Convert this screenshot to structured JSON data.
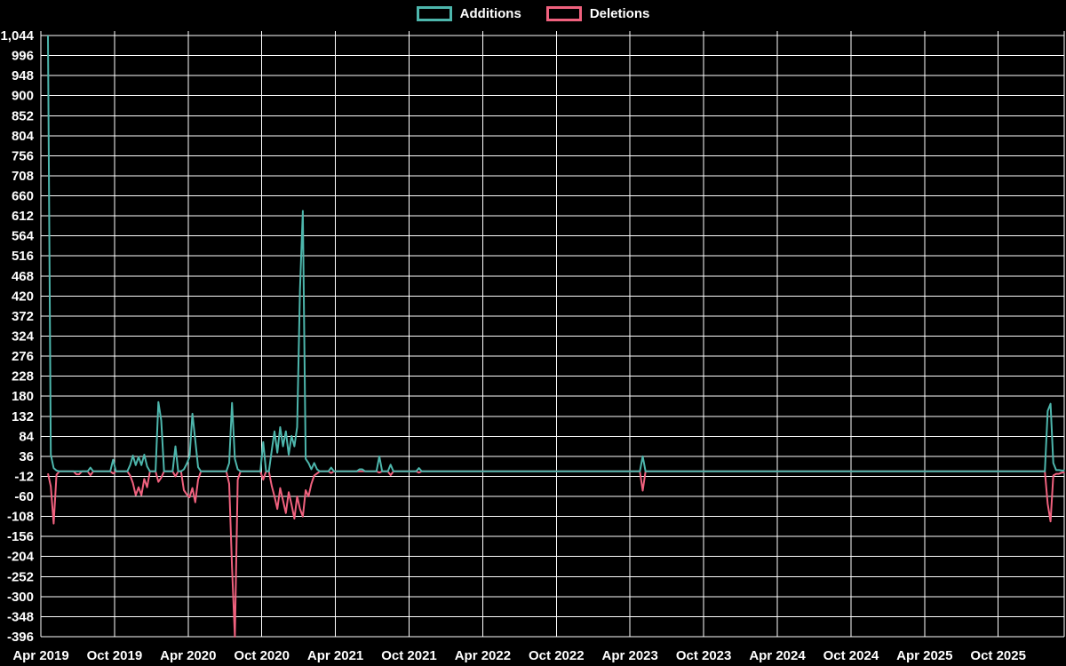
{
  "legend": {
    "items": [
      {
        "label": "Additions",
        "color": "#4DB6AC"
      },
      {
        "label": "Deletions",
        "color": "#F0617E"
      }
    ]
  },
  "chart_data": {
    "type": "line",
    "title": "",
    "grid": true,
    "legend_position": "top-center",
    "background_color": "#000000",
    "gridline_color": "#FFFFFF",
    "x": {
      "tick_labels": [
        "Apr 2019",
        "Oct 2019",
        "Apr 2020",
        "Oct 2020",
        "Apr 2021",
        "Oct 2021",
        "Apr 2022",
        "Oct 2022",
        "Apr 2023",
        "Oct 2023",
        "Apr 2024",
        "Oct 2024",
        "Apr 2025",
        "Oct 2025"
      ],
      "weeks_between_ticks": 26,
      "total_weeks": 360
    },
    "y": {
      "min": -396,
      "max": 1044,
      "step": 48,
      "tick_labels": [
        "1,044",
        "996",
        "948",
        "900",
        "852",
        "804",
        "756",
        "708",
        "660",
        "612",
        "564",
        "516",
        "468",
        "420",
        "372",
        "324",
        "276",
        "228",
        "180",
        "132",
        "84",
        "36",
        "-12",
        "-60",
        "-108",
        "-156",
        "-204",
        "-252",
        "-300",
        "-348",
        "-396"
      ]
    },
    "series": [
      {
        "name": "Additions",
        "color": "#4DB6AC",
        "baseline": 0,
        "points_sparse": [
          [
            0,
            1044
          ],
          [
            1,
            40
          ],
          [
            2,
            8
          ],
          [
            3,
            2
          ],
          [
            15,
            9
          ],
          [
            23,
            28
          ],
          [
            29,
            15
          ],
          [
            30,
            38
          ],
          [
            31,
            15
          ],
          [
            32,
            35
          ],
          [
            33,
            15
          ],
          [
            34,
            40
          ],
          [
            35,
            12
          ],
          [
            39,
            166
          ],
          [
            40,
            122
          ],
          [
            45,
            60
          ],
          [
            48,
            5
          ],
          [
            49,
            18
          ],
          [
            50,
            35
          ],
          [
            51,
            138
          ],
          [
            52,
            75
          ],
          [
            53,
            10
          ],
          [
            64,
            20
          ],
          [
            65,
            164
          ],
          [
            66,
            30
          ],
          [
            67,
            5
          ],
          [
            76,
            70
          ],
          [
            79,
            50
          ],
          [
            80,
            96
          ],
          [
            81,
            45
          ],
          [
            82,
            106
          ],
          [
            83,
            60
          ],
          [
            84,
            96
          ],
          [
            85,
            40
          ],
          [
            86,
            85
          ],
          [
            87,
            60
          ],
          [
            88,
            106
          ],
          [
            89,
            436
          ],
          [
            90,
            624
          ],
          [
            91,
            30
          ],
          [
            92,
            20
          ],
          [
            93,
            5
          ],
          [
            94,
            20
          ],
          [
            95,
            5
          ],
          [
            100,
            9
          ],
          [
            110,
            5
          ],
          [
            111,
            5
          ],
          [
            117,
            36
          ],
          [
            121,
            16
          ],
          [
            131,
            8
          ],
          [
            210,
            36
          ],
          [
            353,
            145
          ],
          [
            354,
            162
          ],
          [
            355,
            20
          ],
          [
            356,
            3
          ],
          [
            357,
            3
          ],
          [
            358,
            2
          ],
          [
            359,
            2
          ]
        ]
      },
      {
        "name": "Deletions",
        "color": "#F0617E",
        "baseline": 0,
        "points_sparse": [
          [
            0,
            -5
          ],
          [
            1,
            -36
          ],
          [
            2,
            -125
          ],
          [
            3,
            -8
          ],
          [
            10,
            -7
          ],
          [
            11,
            -7
          ],
          [
            15,
            -9
          ],
          [
            23,
            -5
          ],
          [
            29,
            -10
          ],
          [
            30,
            -28
          ],
          [
            31,
            -57
          ],
          [
            32,
            -38
          ],
          [
            33,
            -57
          ],
          [
            34,
            -18
          ],
          [
            35,
            -38
          ],
          [
            39,
            -25
          ],
          [
            40,
            -15
          ],
          [
            45,
            -12
          ],
          [
            48,
            -45
          ],
          [
            49,
            -55
          ],
          [
            50,
            -62
          ],
          [
            51,
            -40
          ],
          [
            52,
            -74
          ],
          [
            53,
            -20
          ],
          [
            64,
            -30
          ],
          [
            65,
            -230
          ],
          [
            66,
            -396
          ],
          [
            67,
            -20
          ],
          [
            76,
            -20
          ],
          [
            79,
            -35
          ],
          [
            80,
            -60
          ],
          [
            81,
            -90
          ],
          [
            82,
            -40
          ],
          [
            83,
            -70
          ],
          [
            84,
            -100
          ],
          [
            85,
            -50
          ],
          [
            86,
            -80
          ],
          [
            87,
            -113
          ],
          [
            88,
            -60
          ],
          [
            89,
            -90
          ],
          [
            90,
            -108
          ],
          [
            91,
            -45
          ],
          [
            92,
            -60
          ],
          [
            93,
            -30
          ],
          [
            94,
            -10
          ],
          [
            95,
            -5
          ],
          [
            100,
            -4
          ],
          [
            117,
            -3
          ],
          [
            121,
            -9
          ],
          [
            131,
            -3
          ],
          [
            210,
            -46
          ],
          [
            353,
            -78
          ],
          [
            354,
            -120
          ],
          [
            355,
            -10
          ],
          [
            356,
            -6
          ],
          [
            357,
            -6
          ],
          [
            358,
            -3
          ],
          [
            359,
            -2
          ]
        ]
      }
    ]
  }
}
